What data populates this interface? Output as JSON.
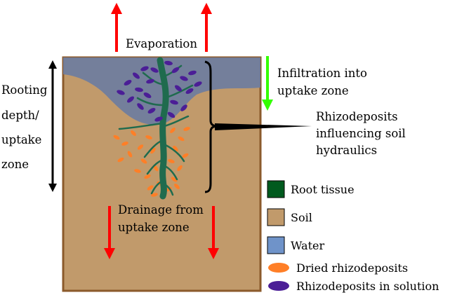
{
  "labels": {
    "evaporation": "Evaporation",
    "rooting_depth": [
      "Rooting",
      "depth/",
      "uptake",
      "zone"
    ],
    "infiltration": [
      "Infiltration into",
      "uptake zone"
    ],
    "rhizodeposits_hydraulics": [
      "Rhizodeposits",
      "influencing soil",
      "hydraulics"
    ],
    "drainage": [
      "Drainage from",
      "uptake zone"
    ]
  },
  "legend": [
    {
      "label": "Root tissue",
      "color": "#005a1e",
      "shape": "square"
    },
    {
      "label": "Soil",
      "color": "#c19a6b",
      "shape": "square"
    },
    {
      "label": "Water",
      "color": "#6f93c9",
      "shape": "square"
    },
    {
      "label": "Dried rhizodeposits",
      "color": "#ff7f27",
      "shape": "ellipse"
    },
    {
      "label": "Rhizodeposits in solution",
      "color": "#4b1e96",
      "shape": "ellipse"
    }
  ],
  "colors": {
    "soil": "#c19a6b",
    "soil_border": "#8b5a2b",
    "water": "#6e7d9f",
    "root": "#1f6b4e",
    "arrow_red": "#ff0000",
    "arrow_green": "#33ff00",
    "solution": "#4b1e96",
    "dried": "#ff7f27"
  }
}
